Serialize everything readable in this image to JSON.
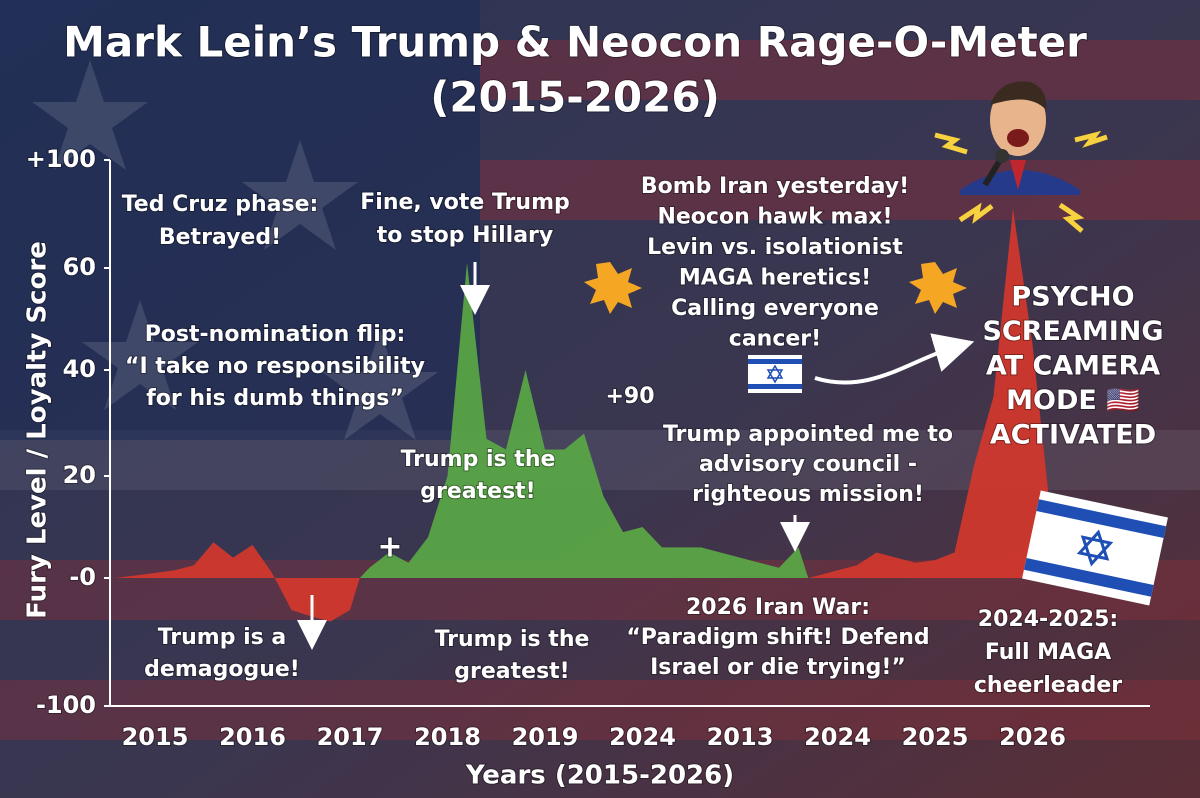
{
  "chart_data": {
    "type": "area",
    "title": "Mark Lein’s Trump & Neocon Rage-O-Meter",
    "subtitle": "(2015-2026)",
    "x_label": "Years (2015-2026)",
    "y_label": "Fury Level / Loyalty Score",
    "categories": [
      null,
      null,
      "2015",
      null,
      null,
      null,
      null,
      "2016",
      null,
      null,
      null,
      null,
      "2017",
      null,
      null,
      null,
      null,
      "2018",
      null,
      null,
      null,
      null,
      "2019",
      null,
      null,
      null,
      null,
      "2024",
      null,
      null,
      null,
      null,
      "2013",
      null,
      null,
      null,
      null,
      "2024",
      null,
      null,
      null,
      null,
      "2025",
      null,
      null,
      null,
      null,
      "2026",
      null,
      null
    ],
    "values": [
      0,
      0.5,
      1,
      1.5,
      2.5,
      7,
      4,
      6.5,
      1,
      -25,
      -30,
      -34,
      -25,
      2,
      5,
      3,
      8,
      20,
      62,
      27,
      25,
      40,
      25,
      25,
      28,
      16,
      9,
      10,
      6,
      6,
      6,
      5,
      4,
      3,
      2,
      6,
      0.5,
      1.5,
      2.5,
      5,
      4,
      3,
      3.5,
      5,
      22,
      35,
      82,
      45,
      10,
      0
    ],
    "point_colors": [
      "#d4372c",
      "#d4372c",
      "#d4372c",
      "#d4372c",
      "#d4372c",
      "#d4372c",
      "#d4372c",
      "#d4372c",
      "#d4372c",
      "#d4372c",
      "#d4372c",
      "#d4372c",
      "#d4372c",
      "#5aa845",
      "#5aa845",
      "#5aa845",
      "#5aa845",
      "#5aa845",
      "#5aa845",
      "#5aa845",
      "#5aa845",
      "#5aa845",
      "#5aa845",
      "#5aa845",
      "#5aa845",
      "#5aa845",
      "#5aa845",
      "#5aa845",
      "#5aa845",
      "#5aa845",
      "#5aa845",
      "#5aa845",
      "#5aa845",
      "#5aa845",
      "#5aa845",
      "#5aa845",
      "#d4372c",
      "#d4372c",
      "#d4372c",
      "#d4372c",
      "#d4372c",
      "#d4372c",
      "#d4372c",
      "#d4372c",
      "#d4372c",
      "#d4372c",
      "#d4372c",
      "#d4372c",
      "#d4372c",
      "#d4372c"
    ],
    "yticks": [
      {
        "value": 100,
        "label": "+100"
      },
      60,
      40,
      20,
      {
        "value": 0,
        "label": "-0"
      },
      -100
    ],
    "ylim": [
      -100,
      100
    ],
    "annotations": [
      {
        "lines": [
          "Ted Cruz phase:",
          "Betrayed!"
        ]
      },
      {
        "lines": [
          "Fine, vote Trump",
          "to stop Hillary"
        ]
      },
      {
        "lines": [
          "Post-nomination flip:",
          "“I take no responsibility",
          "for his dumb things”"
        ]
      },
      {
        "lines": [
          "Trump is the",
          "greatest!"
        ]
      },
      {
        "lines": [
          "+90"
        ]
      },
      {
        "lines": [
          "Bomb Iran yesterday!",
          "Neocon hawk max!",
          "Levin vs. isolationist",
          "MAGA heretics!",
          "Calling everyone",
          "cancer!"
        ]
      },
      {
        "lines": [
          "Trump appointed me to",
          "advisory council -",
          "righteous mission!"
        ]
      },
      {
        "lines": [
          "PSYCHO",
          "SCREAMING",
          "AT CAMERA",
          "MODE 🇺🇸",
          "ACTIVATED"
        ]
      },
      {
        "lines": [
          "Trump is a",
          "demagogue!"
        ]
      },
      {
        "lines": [
          "Trump is the",
          "greatest!"
        ]
      },
      {
        "lines": [
          "2026 Iran War:",
          "“Paradigm shift! Defend",
          "Israel or die trying!”"
        ]
      },
      {
        "lines": [
          "2024-2025:",
          "Full MAGA",
          "cheerleader"
        ]
      },
      {
        "lines": [
          "+"
        ]
      }
    ]
  }
}
